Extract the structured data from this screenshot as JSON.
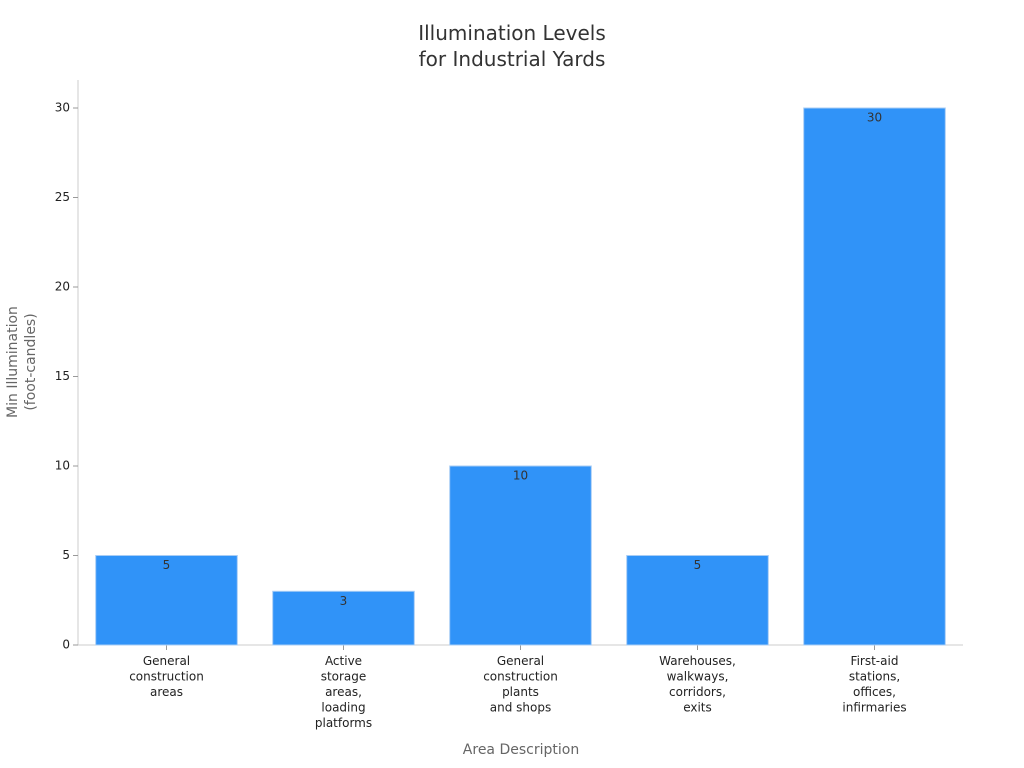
{
  "chart_data": {
    "type": "bar",
    "title": [
      "Illumination Levels",
      "for Industrial Yards"
    ],
    "x_label": "Area Description",
    "y_label": [
      "Min Illumination",
      "(foot-candles)"
    ],
    "categories": [
      [
        "General",
        "construction",
        "areas"
      ],
      [
        "Active",
        "storage",
        "areas,",
        "loading",
        "platforms"
      ],
      [
        "General",
        "construction",
        "plants",
        "and shops"
      ],
      [
        "Warehouses,",
        "walkways,",
        "corridors,",
        "exits"
      ],
      [
        "First-aid",
        "stations,",
        "offices,",
        "infirmaries"
      ]
    ],
    "values": [
      5,
      3,
      10,
      5,
      30
    ],
    "color": "#3093f8",
    "ylim": [
      0,
      30
    ],
    "yticks": [
      0,
      5,
      10,
      15,
      20,
      25,
      30
    ],
    "grid": false
  }
}
